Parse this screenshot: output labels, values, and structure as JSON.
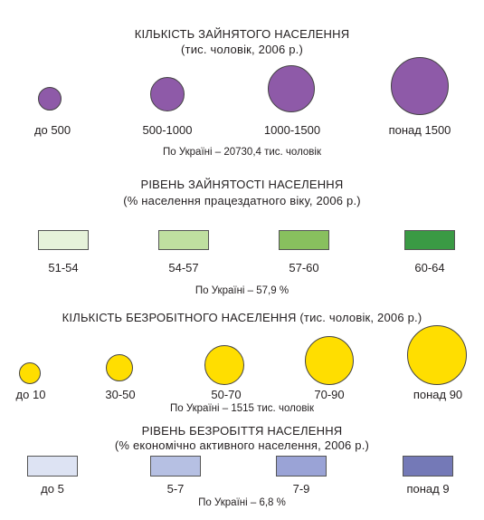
{
  "colors": {
    "employed_circle": "#8e5aa8",
    "unemployed_circle": "#ffde00",
    "employment_rate": [
      "#e6f2da",
      "#bfdfa0",
      "#88c05e",
      "#3a9a44"
    ],
    "unemployment_rate": [
      "#dde3f3",
      "#b6c0e3",
      "#9aa3d6",
      "#7479b7"
    ]
  },
  "icons": {
    "employed": "purple-circle",
    "unemployed": "yellow-circle",
    "rate": "rectangle-swatch"
  },
  "sections": {
    "employed": {
      "title": "КІЛЬКІСТЬ ЗАЙНЯТОГО НАСЕЛЕННЯ",
      "subtitle": "(тис. чоловік, 2006 р.)",
      "items": [
        "до 500",
        "500-1000",
        "1000-1500",
        "понад 1500"
      ],
      "note": "По Україні – 20730,4 тис. чоловік"
    },
    "employment_rate": {
      "title": "РІВЕНЬ ЗАЙНЯТОСТІ НАСЕЛЕННЯ",
      "subtitle": "(% населення працездатного віку, 2006 р.)",
      "items": [
        "51-54",
        "54-57",
        "57-60",
        "60-64"
      ],
      "note": "По Україні – 57,9 %"
    },
    "unemployed": {
      "title": "КІЛЬКІСТЬ БЕЗРОБІТНОГО НАСЕЛЕННЯ (тис. чоловік, 2006 р.)",
      "items": [
        "до 10",
        "30-50",
        "50-70",
        "70-90",
        "понад 90"
      ],
      "note": "По Україні – 1515 тис. чоловік"
    },
    "unemployment_rate": {
      "title": "РІВЕНЬ БЕЗРОБІТТЯ НАСЕЛЕННЯ",
      "subtitle": "(% економічно активного населення, 2006 р.)",
      "items": [
        "до 5",
        "5-7",
        "7-9",
        "понад 9"
      ],
      "note": "По Україні – 6,8 %"
    }
  }
}
